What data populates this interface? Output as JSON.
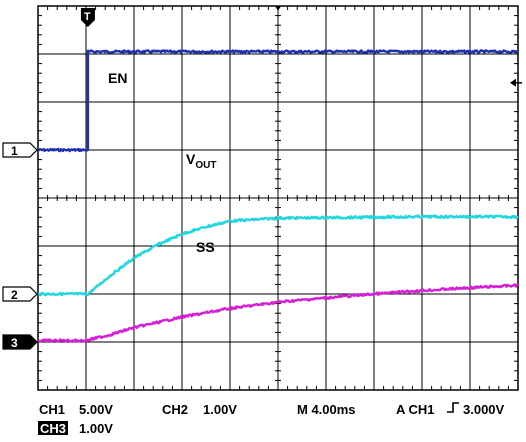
{
  "chart_data": {
    "type": "line",
    "title": "",
    "xlabel": "",
    "ylabel": "",
    "grid": true,
    "x_divisions": 10,
    "y_divisions": 8,
    "x_unit": "div",
    "y_unit": "div",
    "xlim": [
      0,
      10
    ],
    "ylim": [
      -4,
      4
    ],
    "trigger_marker": "T",
    "series": [
      {
        "name": "EN",
        "color": "#1f2fb0",
        "channel_marker": "1",
        "marker_style": "outline",
        "marker_level_div": 1,
        "x": [
          0,
          1.04,
          1.04,
          10
        ],
        "y": [
          1,
          1,
          3.05,
          3.05
        ]
      },
      {
        "name": "V",
        "name_sub": "OUT",
        "color": "#20d6df",
        "channel_marker": "2",
        "marker_style": "outline",
        "marker_level_div": -2,
        "x": [
          0,
          1.04,
          1.5,
          2,
          2.5,
          3,
          3.5,
          4,
          4.5,
          5,
          6,
          7,
          8,
          10
        ],
        "y": [
          -2,
          -2,
          -1.62,
          -1.25,
          -0.97,
          -0.75,
          -0.6,
          -0.48,
          -0.45,
          -0.42,
          -0.41,
          -0.4,
          -0.39,
          -0.39
        ]
      },
      {
        "name": "SS",
        "color": "#d61ed6",
        "channel_marker": "3",
        "marker_style": "filled",
        "marker_level_div": -3,
        "x": [
          0,
          1,
          1.5,
          2,
          3,
          4,
          5,
          6,
          7,
          8,
          9,
          10
        ],
        "y": [
          -2.97,
          -2.97,
          -2.85,
          -2.7,
          -2.48,
          -2.3,
          -2.17,
          -2.08,
          -2.0,
          -1.93,
          -1.87,
          -1.82
        ]
      }
    ]
  },
  "footer": {
    "ch1": "CH1",
    "ch1_scale": "5.00V",
    "ch2": "CH2",
    "ch2_scale": "1.00V",
    "timebase": "M 4.00ms",
    "trigger": "A  CH1",
    "trigger_level": "3.000V",
    "ch3": "CH3",
    "ch3_scale": "1.00V"
  }
}
